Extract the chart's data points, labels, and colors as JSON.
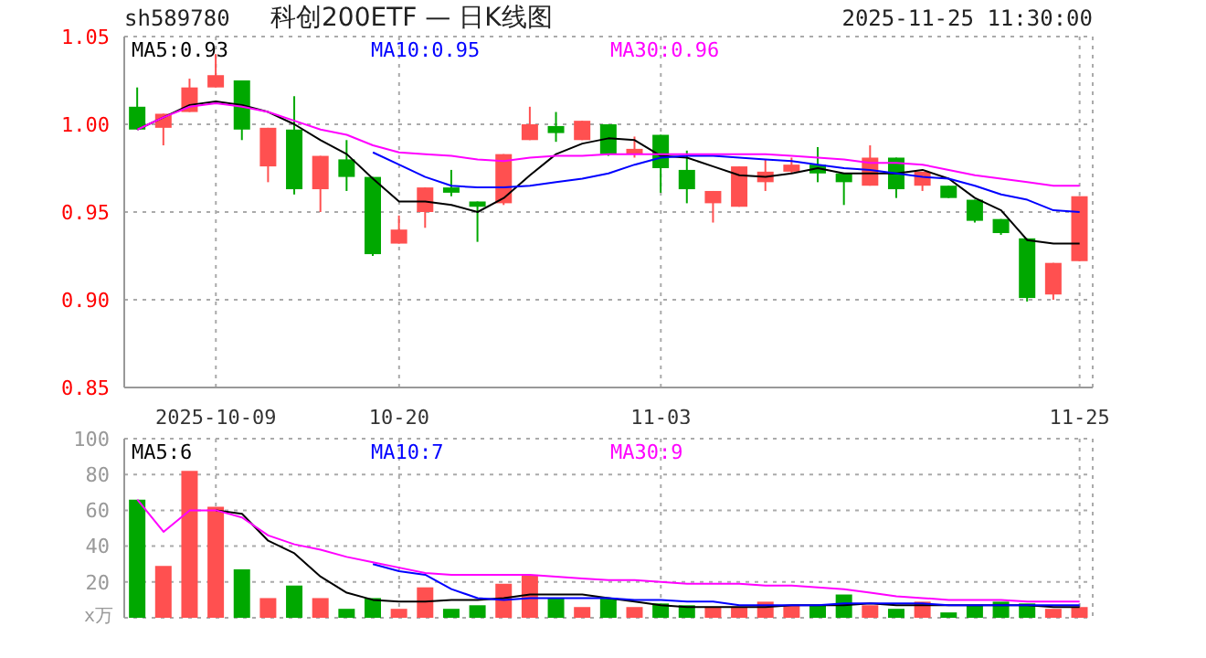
{
  "chart_data": [
    {
      "type": "candlestick",
      "title": "科创200ETF — 日K线图",
      "annotations": [
        "sh589780",
        "2025-11-25 11:30:00"
      ],
      "categories": [
        null,
        null,
        null,
        "2025-10-09",
        null,
        null,
        null,
        null,
        null,
        null,
        "10-20",
        null,
        null,
        null,
        null,
        null,
        null,
        null,
        null,
        null,
        "11-03",
        null,
        null,
        null,
        null,
        null,
        null,
        null,
        null,
        null,
        null,
        null,
        null,
        null,
        null,
        null,
        "11-25"
      ],
      "ohlc": [
        [
          1.01,
          1.021,
          0.997,
          0.997
        ],
        [
          0.998,
          1.006,
          0.988,
          1.006
        ],
        [
          1.007,
          1.026,
          1.007,
          1.021
        ],
        [
          1.021,
          1.04,
          1.021,
          1.028
        ],
        [
          1.025,
          1.025,
          0.991,
          0.997
        ],
        [
          0.976,
          0.998,
          0.967,
          0.998
        ],
        [
          0.997,
          1.016,
          0.96,
          0.963
        ],
        [
          0.963,
          0.982,
          0.95,
          0.982
        ],
        [
          0.98,
          0.991,
          0.962,
          0.97
        ],
        [
          0.97,
          0.97,
          0.925,
          0.926
        ],
        [
          0.932,
          0.948,
          0.932,
          0.94
        ],
        [
          0.95,
          0.964,
          0.941,
          0.964
        ],
        [
          0.964,
          0.974,
          0.959,
          0.961
        ],
        [
          0.956,
          0.956,
          0.933,
          0.953
        ],
        [
          0.955,
          0.983,
          0.954,
          0.983
        ],
        [
          0.991,
          1.01,
          0.991,
          1.0
        ],
        [
          0.999,
          1.007,
          0.99,
          0.995
        ],
        [
          0.991,
          1.002,
          0.991,
          1.002
        ],
        [
          1.0,
          1.0,
          0.982,
          0.983
        ],
        [
          0.983,
          0.993,
          0.981,
          0.986
        ],
        [
          0.994,
          0.994,
          0.961,
          0.975
        ],
        [
          0.974,
          0.985,
          0.955,
          0.963
        ],
        [
          0.955,
          0.962,
          0.944,
          0.962
        ],
        [
          0.953,
          0.976,
          0.953,
          0.976
        ],
        [
          0.967,
          0.98,
          0.962,
          0.973
        ],
        [
          0.973,
          0.981,
          0.972,
          0.977
        ],
        [
          0.977,
          0.987,
          0.967,
          0.972
        ],
        [
          0.972,
          0.972,
          0.954,
          0.967
        ],
        [
          0.965,
          0.988,
          0.965,
          0.981
        ],
        [
          0.981,
          0.981,
          0.958,
          0.963
        ],
        [
          0.965,
          0.973,
          0.962,
          0.973
        ],
        [
          0.965,
          0.965,
          0.958,
          0.958
        ],
        [
          0.957,
          0.957,
          0.944,
          0.945
        ],
        [
          0.946,
          0.946,
          0.937,
          0.938
        ],
        [
          0.935,
          0.935,
          0.899,
          0.901
        ],
        [
          0.903,
          0.921,
          0.9,
          0.921
        ],
        [
          0.922,
          0.959,
          0.922,
          0.959
        ]
      ],
      "colors": [
        "#00a800",
        "#ff5050",
        "#ff5050",
        "#ff5050",
        "#00a800",
        "#ff5050",
        "#00a800",
        "#ff5050",
        "#00a800",
        "#00a800",
        "#ff5050",
        "#ff5050",
        "#00a800",
        "#00a800",
        "#ff5050",
        "#ff5050",
        "#00a800",
        "#ff5050",
        "#00a800",
        "#ff5050",
        "#00a800",
        "#00a800",
        "#ff5050",
        "#ff5050",
        "#ff5050",
        "#ff5050",
        "#00a800",
        "#00a800",
        "#ff5050",
        "#00a800",
        "#ff5050",
        "#00a800",
        "#00a800",
        "#00a800",
        "#00a800",
        "#ff5050",
        "#ff5050"
      ],
      "series": [
        {
          "type": "line",
          "name": "MA5:0.93",
          "color": "#000000",
          "values": [
            0.997,
            1.004,
            1.011,
            1.013,
            1.011,
            1.007,
            1.0,
            0.991,
            0.983,
            0.969,
            0.956,
            0.956,
            0.954,
            0.95,
            0.958,
            0.971,
            0.983,
            0.989,
            0.992,
            0.991,
            0.982,
            0.981,
            0.976,
            0.971,
            0.97,
            0.972,
            0.975,
            0.972,
            0.972,
            0.972,
            0.974,
            0.969,
            0.958,
            0.951,
            0.934,
            0.932,
            0.932
          ]
        },
        {
          "type": "line",
          "name": "MA10:0.95",
          "color": "#0000ff",
          "values": [
            null,
            null,
            null,
            null,
            null,
            null,
            null,
            null,
            null,
            0.984,
            0.977,
            0.97,
            0.965,
            0.964,
            0.964,
            0.965,
            0.967,
            0.969,
            0.972,
            0.977,
            0.981,
            0.982,
            0.982,
            0.981,
            0.98,
            0.979,
            0.977,
            0.975,
            0.974,
            0.972,
            0.97,
            0.969,
            0.965,
            0.96,
            0.957,
            0.951,
            0.95
          ]
        },
        {
          "type": "line",
          "name": "MA30:0.96",
          "color": "#ff00ff",
          "values": [
            0.997,
            1.004,
            1.01,
            1.012,
            1.01,
            1.007,
            1.002,
            0.997,
            0.994,
            0.988,
            0.984,
            0.983,
            0.982,
            0.98,
            0.979,
            0.981,
            0.982,
            0.982,
            0.983,
            0.983,
            0.983,
            0.983,
            0.983,
            0.983,
            0.983,
            0.982,
            0.981,
            0.98,
            0.978,
            0.978,
            0.977,
            0.974,
            0.971,
            0.969,
            0.967,
            0.965,
            0.965
          ]
        }
      ],
      "ylim": [
        0.85,
        1.05
      ],
      "yticks": [
        1.05,
        {
          "value": 1.0,
          "label": "1.00"
        },
        0.95,
        {
          "value": 0.9,
          "label": "0.90"
        },
        0.85
      ],
      "grid": true,
      "legend": "top",
      "marker": "none",
      "line_style": "solid"
    },
    {
      "type": "bar",
      "ylabel": "x万",
      "categories": [
        null,
        null,
        null,
        null,
        null,
        null,
        null,
        null,
        null,
        null,
        null,
        null,
        null,
        null,
        null,
        null,
        null,
        null,
        null,
        null,
        null,
        null,
        null,
        null,
        null,
        null,
        null,
        null,
        null,
        null,
        null,
        null,
        null,
        null,
        null,
        null,
        null
      ],
      "series": [
        {
          "type": "bar",
          "colors": [
            "#00a800",
            "#ff5050",
            "#ff5050",
            "#ff5050",
            "#00a800",
            "#ff5050",
            "#00a800",
            "#ff5050",
            "#00a800",
            "#00a800",
            "#ff5050",
            "#ff5050",
            "#00a800",
            "#00a800",
            "#ff5050",
            "#ff5050",
            "#00a800",
            "#ff5050",
            "#00a800",
            "#ff5050",
            "#00a800",
            "#00a800",
            "#ff5050",
            "#ff5050",
            "#ff5050",
            "#ff5050",
            "#00a800",
            "#00a800",
            "#ff5050",
            "#00a800",
            "#ff5050",
            "#00a800",
            "#00a800",
            "#00a800",
            "#00a800",
            "#ff5050",
            "#ff5050"
          ],
          "values": [
            66,
            29,
            82,
            62,
            27,
            11,
            18,
            11,
            5,
            11,
            5,
            17,
            5,
            7,
            19,
            24,
            11,
            6,
            11,
            6,
            8,
            7,
            6,
            6,
            9,
            7,
            7,
            13,
            7,
            5,
            9,
            3,
            7,
            9,
            8,
            5,
            6
          ]
        },
        {
          "type": "line",
          "name": "MA5:6",
          "color": "#000000",
          "values": [
            null,
            null,
            null,
            60,
            58,
            43,
            36,
            23,
            14,
            10,
            9,
            9,
            10,
            10,
            11,
            13,
            13,
            13,
            11,
            9,
            7,
            6,
            6,
            6,
            6,
            7,
            7,
            7,
            8,
            7,
            7,
            7,
            7,
            7,
            7,
            6,
            6
          ]
        },
        {
          "type": "line",
          "name": "MA10:7",
          "color": "#0000ff",
          "values": [
            null,
            null,
            null,
            null,
            null,
            null,
            null,
            null,
            null,
            30,
            26,
            24,
            16,
            11,
            10,
            11,
            11,
            11,
            11,
            10,
            10,
            9,
            9,
            7,
            7,
            7,
            7,
            8,
            8,
            8,
            8,
            7,
            7,
            7,
            7,
            7,
            7
          ]
        },
        {
          "type": "line",
          "name": "MA30:9",
          "color": "#ff00ff",
          "values": [
            66,
            48,
            60,
            60,
            56,
            46,
            41,
            38,
            34,
            31,
            28,
            25,
            24,
            24,
            24,
            24,
            23,
            22,
            21,
            21,
            20,
            19,
            19,
            19,
            18,
            18,
            17,
            16,
            14,
            12,
            11,
            10,
            10,
            10,
            9,
            9,
            9
          ]
        }
      ],
      "ylim": [
        0,
        100
      ],
      "yticks": [
        100,
        80,
        60,
        40,
        20
      ],
      "tick_labels": "y",
      "grid": true,
      "legend": "top",
      "marker": "none",
      "line_style": "solid"
    }
  ]
}
